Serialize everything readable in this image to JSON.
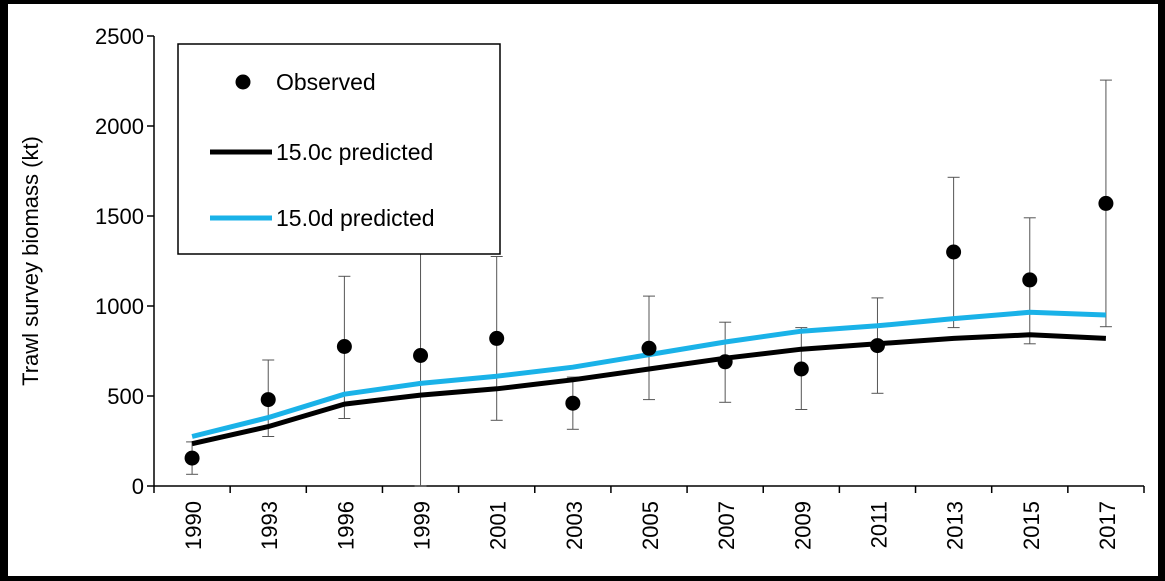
{
  "chart_data": {
    "type": "line",
    "title": "",
    "xlabel": "",
    "ylabel": "Trawl survey biomass (kt)",
    "ylim": [
      0,
      2500
    ],
    "yticks": [
      0,
      500,
      1000,
      1500,
      2000,
      2500
    ],
    "categories": [
      "1990",
      "1993",
      "1996",
      "1999",
      "2001",
      "2003",
      "2005",
      "2007",
      "2009",
      "2011",
      "2013",
      "2015",
      "2017"
    ],
    "legend_position": "top-left",
    "grid": false,
    "series": [
      {
        "name": "Observed",
        "kind": "points",
        "color": "#000000",
        "values": [
          155,
          480,
          775,
          725,
          820,
          460,
          765,
          690,
          650,
          780,
          1300,
          1145,
          1570
        ],
        "error_low": [
          65,
          275,
          375,
          0,
          365,
          315,
          480,
          465,
          425,
          515,
          880,
          790,
          885
        ],
        "error_high": [
          245,
          700,
          1165,
          1480,
          1275,
          605,
          1055,
          910,
          880,
          1045,
          1715,
          1490,
          2255
        ]
      },
      {
        "name": "15.0c predicted",
        "kind": "line",
        "color": "#000000",
        "values": [
          235,
          330,
          455,
          505,
          540,
          590,
          650,
          710,
          760,
          790,
          820,
          840,
          820
        ]
      },
      {
        "name": "15.0d predicted",
        "kind": "line",
        "color": "#1AB2E8",
        "values": [
          275,
          380,
          510,
          570,
          610,
          660,
          730,
          800,
          860,
          890,
          930,
          965,
          950
        ]
      }
    ]
  }
}
